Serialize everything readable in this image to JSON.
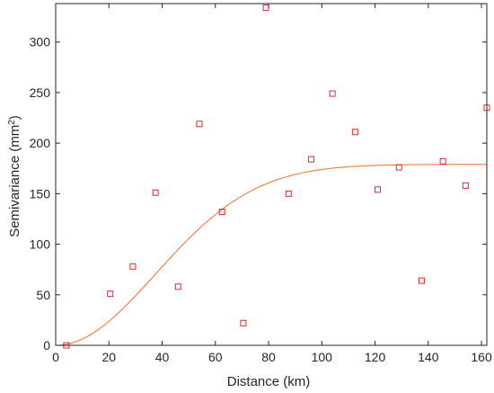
{
  "chart_data": {
    "type": "scatter",
    "title": "",
    "xlabel": "Distance (km)",
    "ylabel": {
      "prefix": "Semivariance (mm",
      "superscript": "2",
      "suffix": ")"
    },
    "xlim": [
      0,
      162
    ],
    "ylim": [
      0,
      335
    ],
    "x_ticks": [
      0,
      20,
      40,
      60,
      80,
      100,
      120,
      140,
      160
    ],
    "y_ticks": [
      0,
      50,
      100,
      150,
      200,
      250,
      300
    ],
    "x_tick_labels": [
      "0",
      "20",
      "40",
      "60",
      "80",
      "100",
      "120",
      "140",
      "160"
    ],
    "y_tick_labels": [
      "0",
      "50",
      "100",
      "150",
      "200",
      "250",
      "300"
    ],
    "grid": false,
    "legend": "none",
    "colors": {
      "points": "#e8262b",
      "model": "#f0783c",
      "axes": "#262626"
    },
    "series": [
      {
        "type": "scatter",
        "marker": "square",
        "points": [
          [
            4,
            0
          ],
          [
            20.5,
            51
          ],
          [
            29,
            78
          ],
          [
            37.5,
            151
          ],
          [
            46,
            58
          ],
          [
            54,
            219
          ],
          [
            62.5,
            132
          ],
          [
            70.5,
            22
          ],
          [
            79,
            334
          ],
          [
            87.5,
            150
          ],
          [
            96,
            184
          ],
          [
            104,
            249
          ],
          [
            112.5,
            211
          ],
          [
            121,
            154
          ],
          [
            129,
            176
          ],
          [
            137.5,
            64
          ],
          [
            145.5,
            182
          ],
          [
            154,
            158
          ],
          [
            162,
            235
          ]
        ]
      },
      {
        "type": "line",
        "model": "gaussian",
        "sill": 179,
        "range": 53,
        "x": [
          0,
          5,
          10,
          15,
          20,
          25,
          30,
          35,
          40,
          45,
          50,
          55,
          60,
          65,
          70,
          75,
          80,
          85,
          90,
          95,
          100,
          110,
          120,
          130,
          140,
          150,
          160,
          162
        ],
        "y": [
          0,
          1.6,
          6.3,
          13.8,
          23.6,
          35.1,
          47.9,
          61.4,
          75.0,
          88.3,
          100.9,
          112.4,
          122.6,
          131.4,
          138.8,
          144.9,
          149.8,
          153.6,
          156.6,
          158.9,
          160.6,
          162.7,
          163.6,
          164.0,
          164.1,
          164.1,
          164.1,
          164.1
        ],
        "note_values_scaled": false
      }
    ]
  }
}
